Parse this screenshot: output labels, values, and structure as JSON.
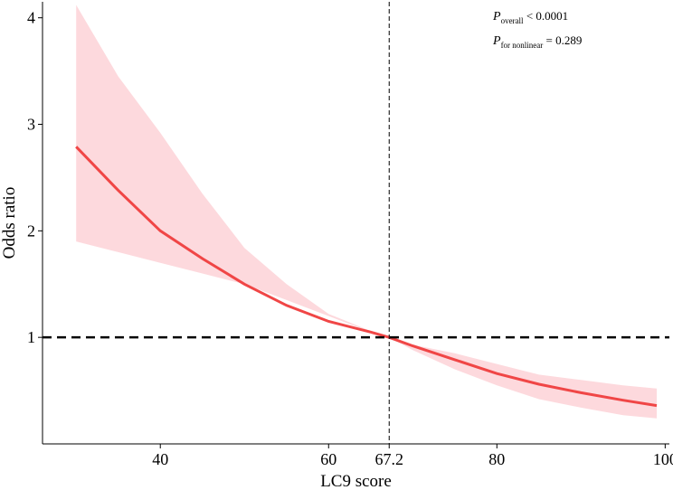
{
  "chart_data": {
    "type": "line",
    "xlabel": "LC9 score",
    "ylabel": "Odds ratio",
    "xlim": [
      26,
      100.5
    ],
    "ylim": [
      0.0,
      4.15
    ],
    "x_ticks": [
      40,
      60,
      67.2,
      80,
      100
    ],
    "x_tick_labels": [
      "40",
      "60",
      "67.2",
      "80",
      "100"
    ],
    "y_ticks": [
      1,
      2,
      3,
      4
    ],
    "y_tick_labels": [
      "1",
      "2",
      "3",
      "4"
    ],
    "reference_x": 67.2,
    "reference_y": 1,
    "grid": false,
    "series": [
      {
        "x": [
          30,
          35,
          40,
          45,
          50,
          55,
          60,
          65,
          67.2,
          70,
          75,
          80,
          85,
          90,
          95,
          99
        ],
        "y": [
          2.79,
          2.38,
          2.0,
          1.74,
          1.5,
          1.3,
          1.15,
          1.05,
          1.0,
          0.92,
          0.79,
          0.66,
          0.56,
          0.48,
          0.41,
          0.36
        ],
        "lower": [
          1.9,
          1.8,
          1.7,
          1.6,
          1.5,
          1.35,
          1.2,
          1.05,
          1.0,
          0.88,
          0.7,
          0.55,
          0.42,
          0.34,
          0.27,
          0.24
        ],
        "upper": [
          4.12,
          3.45,
          2.92,
          2.35,
          1.84,
          1.5,
          1.22,
          1.06,
          1.0,
          0.93,
          0.85,
          0.75,
          0.65,
          0.6,
          0.55,
          0.52
        ]
      }
    ],
    "colors": {
      "line": "#f04646",
      "band": "#fdd9dd",
      "reference": "#000000"
    },
    "annotations": [
      {
        "p": "P",
        "sub": "overall",
        "text": " < 0.0001"
      },
      {
        "p": "P",
        "sub": "for nonlinear",
        "text": " = 0.289"
      }
    ]
  }
}
